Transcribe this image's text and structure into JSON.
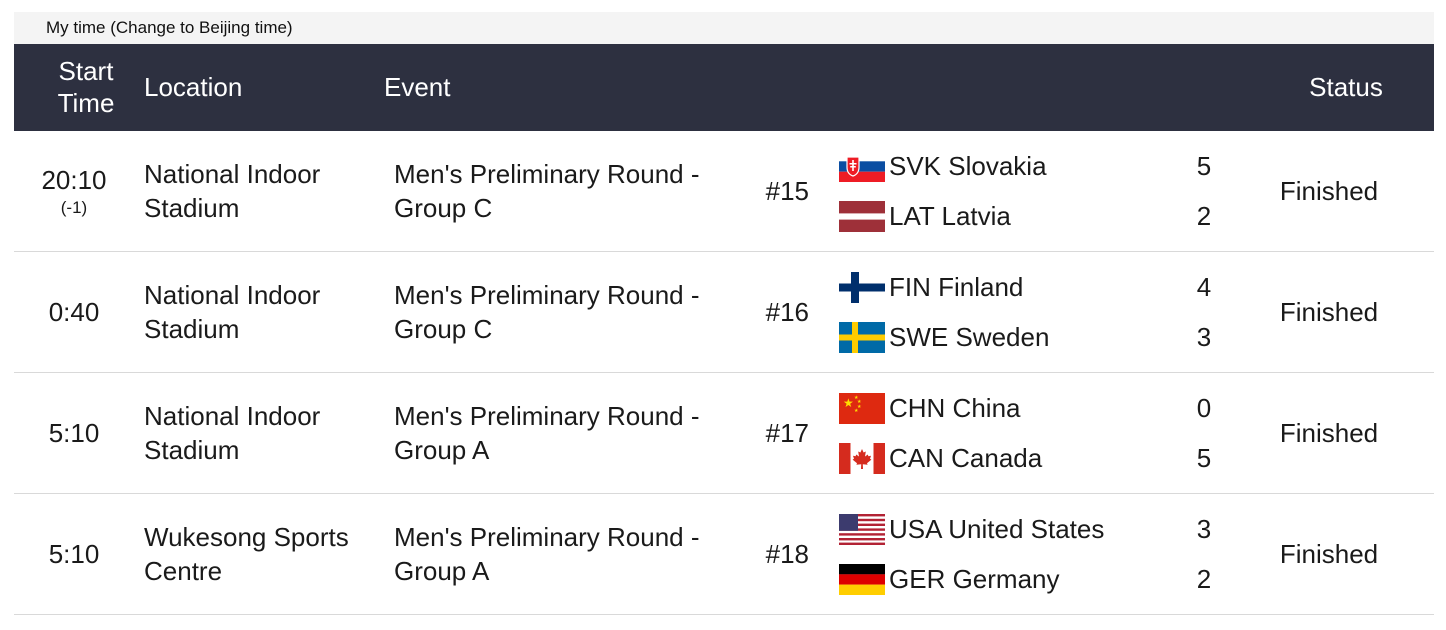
{
  "timebar": {
    "label": "My time (Change to Beijing time)"
  },
  "headers": {
    "start_time": "Start Time",
    "location": "Location",
    "event": "Event",
    "status": "Status"
  },
  "matches": [
    {
      "time": "20:10",
      "offset": "(-1)",
      "location": "National Indoor Stadium",
      "event": "Men's Preliminary Round - Group C",
      "number": "#15",
      "team1": {
        "name": "SVK Slovakia",
        "score": "5",
        "flag": "flag-slovakia"
      },
      "team2": {
        "name": "LAT Latvia",
        "score": "2",
        "flag": "flag-latvia"
      },
      "status": "Finished"
    },
    {
      "time": "0:40",
      "offset": "",
      "location": "National Indoor Stadium",
      "event": "Men's Preliminary Round - Group C",
      "number": "#16",
      "team1": {
        "name": "FIN Finland",
        "score": "4",
        "flag": "flag-finland"
      },
      "team2": {
        "name": "SWE Sweden",
        "score": "3",
        "flag": "flag-sweden"
      },
      "status": "Finished"
    },
    {
      "time": "5:10",
      "offset": "",
      "location": "National Indoor Stadium",
      "event": "Men's Preliminary Round - Group A",
      "number": "#17",
      "team1": {
        "name": "CHN China",
        "score": "0",
        "flag": "flag-china"
      },
      "team2": {
        "name": "CAN Canada",
        "score": "5",
        "flag": "flag-canada"
      },
      "status": "Finished"
    },
    {
      "time": "5:10",
      "offset": "",
      "location": "Wukesong Sports Centre",
      "event": "Men's Preliminary Round - Group A",
      "number": "#18",
      "team1": {
        "name": "USA United States",
        "score": "3",
        "flag": "flag-usa"
      },
      "team2": {
        "name": "GER Germany",
        "score": "2",
        "flag": "flag-germany"
      },
      "status": "Finished"
    }
  ],
  "colors": {
    "header_bg": "#2d3040",
    "row_border": "#d9d9d9",
    "timebar_bg": "#f4f4f4"
  }
}
